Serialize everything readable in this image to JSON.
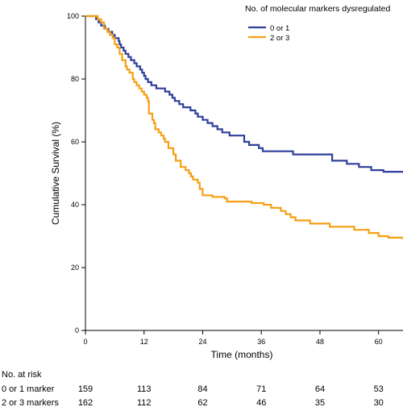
{
  "chart_data": {
    "type": "line",
    "step": true,
    "xlabel": "Time (months)",
    "ylabel": "Cumulative Survival (%)",
    "xlim": [
      0,
      65
    ],
    "ylim": [
      0,
      100
    ],
    "xticks": [
      0,
      12,
      24,
      36,
      48,
      60
    ],
    "yticks": [
      0,
      20,
      40,
      60,
      80,
      100
    ],
    "grid": false,
    "legend": {
      "title": "No. of molecular markers dysregulated",
      "position": "top-right"
    },
    "series": [
      {
        "name": "0 or 1",
        "color": "#2e3f9c",
        "points": [
          [
            0,
            100
          ],
          [
            2.2,
            99
          ],
          [
            2.7,
            98
          ],
          [
            3.2,
            97
          ],
          [
            4,
            96
          ],
          [
            4.7,
            95
          ],
          [
            5.5,
            94
          ],
          [
            6,
            93
          ],
          [
            6.8,
            92
          ],
          [
            7,
            91
          ],
          [
            7.3,
            90
          ],
          [
            7.8,
            89
          ],
          [
            8.2,
            88
          ],
          [
            8.8,
            87
          ],
          [
            9.3,
            86
          ],
          [
            10,
            85
          ],
          [
            10.5,
            84
          ],
          [
            11.2,
            83
          ],
          [
            11.6,
            82
          ],
          [
            12,
            81
          ],
          [
            12.3,
            80
          ],
          [
            12.8,
            79
          ],
          [
            13.5,
            78
          ],
          [
            14.5,
            77
          ],
          [
            16.3,
            76
          ],
          [
            17.2,
            75
          ],
          [
            17.8,
            74
          ],
          [
            18.3,
            73
          ],
          [
            19.2,
            72
          ],
          [
            20,
            71
          ],
          [
            21.5,
            70
          ],
          [
            22.5,
            69
          ],
          [
            23,
            68
          ],
          [
            24,
            67
          ],
          [
            25,
            66
          ],
          [
            26,
            65
          ],
          [
            27,
            64
          ],
          [
            28,
            63
          ],
          [
            29.5,
            62
          ],
          [
            32.5,
            60
          ],
          [
            33.5,
            59
          ],
          [
            35.5,
            58
          ],
          [
            36.3,
            57
          ],
          [
            42.5,
            56
          ],
          [
            50.5,
            54
          ],
          [
            53.5,
            53
          ],
          [
            56,
            52
          ],
          [
            58.5,
            51
          ],
          [
            61,
            50.5
          ],
          [
            65,
            50.5
          ]
        ]
      },
      {
        "name": "2 or 3",
        "color": "#f5a014",
        "points": [
          [
            0,
            100
          ],
          [
            2.5,
            99
          ],
          [
            3.2,
            98
          ],
          [
            3.8,
            96
          ],
          [
            4.5,
            95
          ],
          [
            5,
            94
          ],
          [
            5.6,
            93
          ],
          [
            6,
            91
          ],
          [
            6.5,
            90
          ],
          [
            7,
            88
          ],
          [
            7.5,
            86
          ],
          [
            8.2,
            84
          ],
          [
            8.5,
            83
          ],
          [
            9,
            82
          ],
          [
            9.7,
            80
          ],
          [
            10,
            79
          ],
          [
            10.5,
            78
          ],
          [
            11,
            77
          ],
          [
            11.5,
            76
          ],
          [
            12,
            75
          ],
          [
            12.5,
            74
          ],
          [
            12.8,
            73
          ],
          [
            13,
            69
          ],
          [
            13.7,
            67
          ],
          [
            14,
            66
          ],
          [
            14.3,
            64
          ],
          [
            15,
            63
          ],
          [
            15.5,
            62
          ],
          [
            16,
            61
          ],
          [
            16.3,
            60
          ],
          [
            17,
            58
          ],
          [
            18,
            56
          ],
          [
            18.5,
            54
          ],
          [
            19.5,
            52
          ],
          [
            20.5,
            51
          ],
          [
            21.2,
            50
          ],
          [
            21.6,
            49
          ],
          [
            22,
            48
          ],
          [
            23,
            47
          ],
          [
            23.4,
            45
          ],
          [
            24,
            43
          ],
          [
            26,
            42.5
          ],
          [
            28.5,
            42
          ],
          [
            29,
            41
          ],
          [
            34,
            40.5
          ],
          [
            36.5,
            40
          ],
          [
            38,
            39
          ],
          [
            40,
            38
          ],
          [
            41,
            37
          ],
          [
            42,
            36
          ],
          [
            43,
            35
          ],
          [
            46,
            34
          ],
          [
            50,
            33
          ],
          [
            55,
            32
          ],
          [
            58,
            31
          ],
          [
            60,
            30
          ],
          [
            62,
            29.5
          ],
          [
            65,
            29
          ]
        ]
      }
    ],
    "at_risk": {
      "title": "No. at risk",
      "rows": [
        {
          "label": "0 or 1 marker",
          "values": [
            159,
            113,
            84,
            71,
            64,
            53
          ]
        },
        {
          "label": "2 or 3 markers",
          "values": [
            162,
            112,
            62,
            46,
            35,
            30
          ]
        }
      ]
    }
  }
}
